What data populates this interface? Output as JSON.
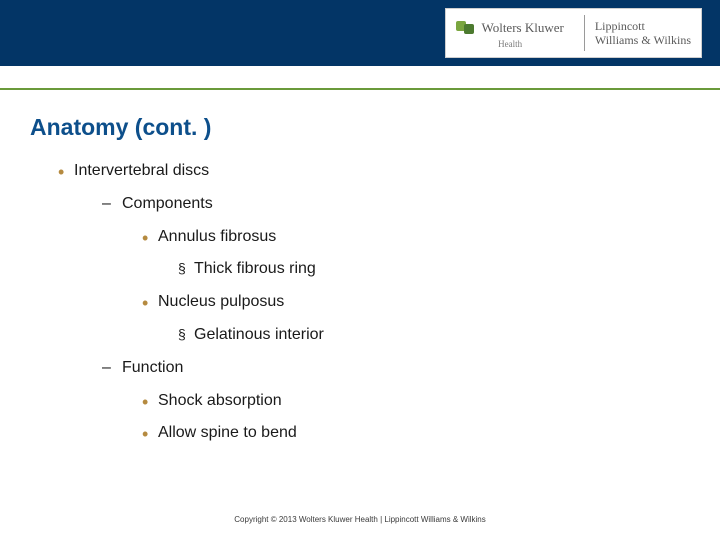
{
  "logo": {
    "wk": "Wolters Kluwer",
    "health": "Health",
    "lww_line1": "Lippincott",
    "lww_line2": "Williams & Wilkins"
  },
  "title": "Anatomy (cont. )",
  "items": {
    "l1_1": "Intervertebral discs",
    "l2_1": "Components",
    "l3_1": "Annulus fibrosus",
    "l4_1": "Thick fibrous ring",
    "l3_2": "Nucleus pulposus",
    "l4_2": "Gelatinous interior",
    "l2_2": "Function",
    "l3_3": "Shock absorption",
    "l3_4": "Allow spine to bend"
  },
  "copyright": "Copyright © 2013 Wolters Kluwer Health | Lippincott Williams & Wilkins"
}
